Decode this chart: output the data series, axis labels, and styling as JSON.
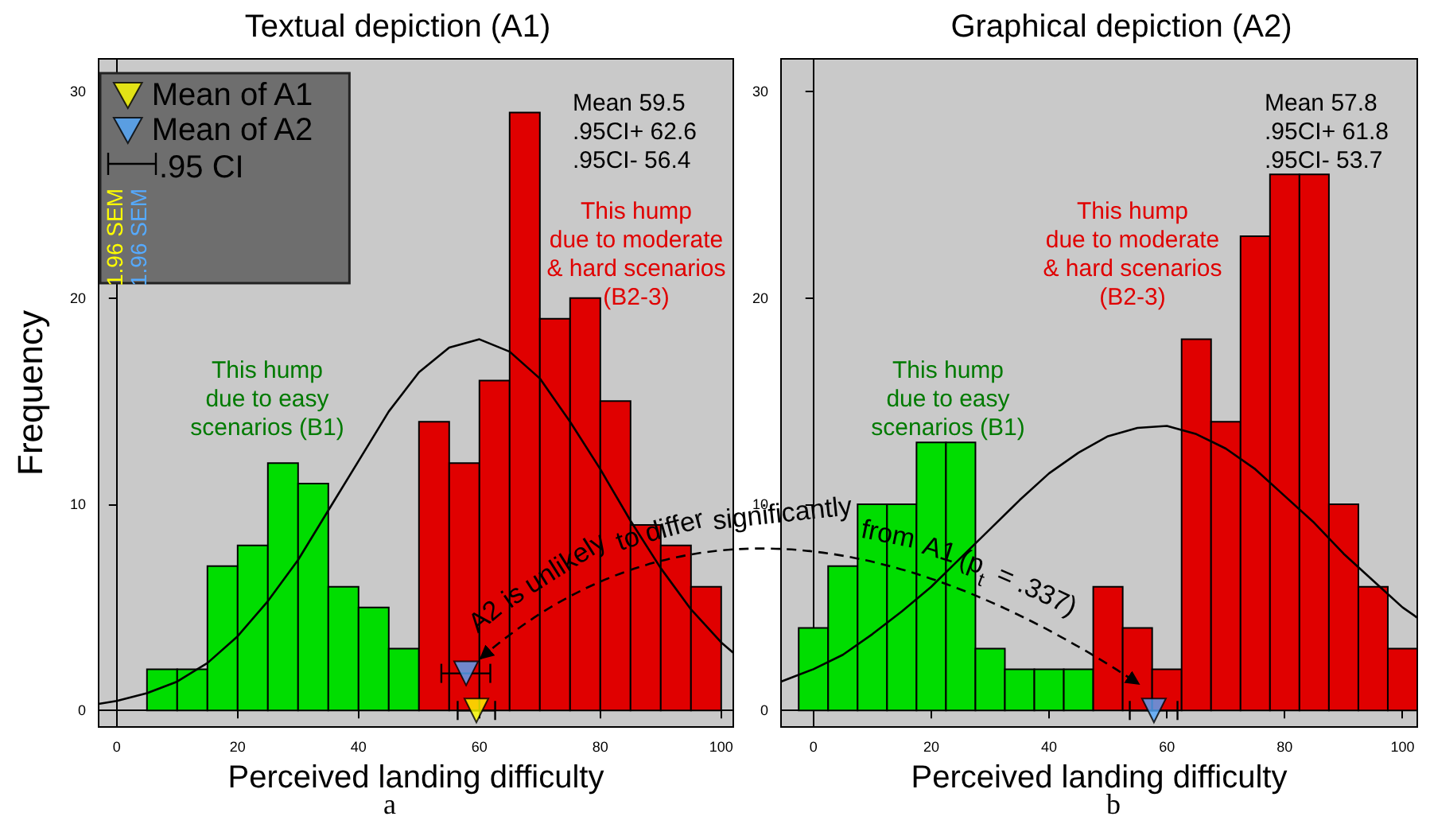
{
  "chart_data": [
    {
      "type": "histogram",
      "title": "Textual depiction (A1)",
      "xlabel": "Perceived landing difficulty",
      "ylabel": "Frequency",
      "xlim": [
        -3,
        102
      ],
      "ylim": [
        -0.8,
        31.6
      ],
      "xticks": [
        0,
        20,
        40,
        60,
        80,
        100
      ],
      "yticks": [
        0,
        10,
        20,
        30
      ],
      "legend": "top left",
      "marker": "triangle",
      "annotations": [
        "Mean 59.5\n.95CI+ 62.6\n.95CI- 56.4",
        "This hump\ndue to easy\nscenarios (B1)",
        "This hump\ndue to moderate\n& hard scenarios\n(B2-3)",
        ".95 CI",
        "1.96 SEM",
        "1.96 SEM",
        "A2 is unlikely to differ significantly from A1 (p$_{t}$ = .337)",
        "a"
      ],
      "series": [
        {
          "bins": [
            5,
            10,
            15,
            20,
            25,
            30,
            35,
            40,
            45,
            50,
            55,
            60,
            65,
            70,
            75,
            80,
            85,
            90,
            95,
            100
          ],
          "values": [
            2,
            2,
            7,
            8,
            12,
            11,
            6,
            5,
            3,
            14,
            12,
            16,
            29,
            19,
            20,
            15,
            9,
            8,
            6
          ],
          "colors": [
            "#00dd00",
            "#00dd00",
            "#00dd00",
            "#00dd00",
            "#00dd00",
            "#00dd00",
            "#00dd00",
            "#00dd00",
            "#00dd00",
            "#e00000",
            "#e00000",
            "#e00000",
            "#e00000",
            "#e00000",
            "#e00000",
            "#e00000",
            "#e00000",
            "#e00000",
            "#e00000"
          ]
        },
        {
          "type": "line",
          "color": "#000000",
          "marker": "none",
          "x": [
            -3,
            0,
            5,
            10,
            15,
            20,
            25,
            30,
            35,
            40,
            45,
            50,
            55,
            60,
            65,
            70,
            75,
            80,
            85,
            90,
            95,
            100,
            102
          ],
          "values": [
            0.32,
            0.46,
            0.84,
            1.4,
            2.3,
            3.6,
            5.3,
            7.3,
            9.7,
            12.1,
            14.5,
            16.4,
            17.6,
            18,
            17.4,
            16.1,
            14,
            11.7,
            9.2,
            6.9,
            4.9,
            3.3,
            2.8
          ]
        },
        {
          "type": "scatter",
          "name": "Mean of A1",
          "color": "#ffff00",
          "x": [
            59.5
          ],
          "values": [
            0
          ],
          "xerrors": [
            [
              56.4,
              62.6
            ]
          ]
        },
        {
          "type": "scatter",
          "name": "Mean of A2",
          "color": "#55aaff",
          "x": [
            57.8
          ],
          "values": [
            1.8
          ],
          "xerrors": [
            [
              53.7,
              61.8
            ]
          ]
        }
      ]
    },
    {
      "type": "histogram",
      "title": "Graphical depiction (A2)",
      "xlabel": "Perceived landing difficulty",
      "xlim": [
        -5.5,
        102.5
      ],
      "ylim": [
        -0.8,
        31.6
      ],
      "xticks": [
        0,
        20,
        40,
        60,
        80,
        100
      ],
      "yticks": [
        0,
        10,
        20,
        30
      ],
      "marker": "triangle",
      "annotations": [
        "Mean 57.8\n.95CI+ 61.8\n.95CI- 53.7",
        "This hump\ndue to easy\nscenarios (B1)",
        "This hump\ndue to moderate\n& hard scenarios\n(B2-3)",
        "b"
      ],
      "series": [
        {
          "bins": [
            -2.5,
            2.5,
            7.5,
            12.5,
            17.5,
            22.5,
            27.5,
            32.5,
            37.5,
            42.5,
            47.5,
            52.5,
            57.5,
            62.5,
            67.5,
            72.5,
            77.5,
            82.5,
            87.5,
            92.5,
            97.5,
            102.5
          ],
          "values": [
            4,
            7,
            10,
            10,
            13,
            13,
            3,
            2,
            2,
            2,
            6,
            4,
            2,
            18,
            14,
            23,
            26,
            26,
            10,
            6,
            3
          ],
          "colors": [
            "#00dd00",
            "#00dd00",
            "#00dd00",
            "#00dd00",
            "#00dd00",
            "#00dd00",
            "#00dd00",
            "#00dd00",
            "#00dd00",
            "#00dd00",
            "#e00000",
            "#e00000",
            "#e00000",
            "#e00000",
            "#e00000",
            "#e00000",
            "#e00000",
            "#e00000",
            "#e00000",
            "#e00000",
            "#e00000"
          ]
        },
        {
          "type": "line",
          "color": "#000000",
          "marker": "none",
          "x": [
            -5.5,
            0,
            5,
            10,
            15,
            20,
            25,
            30,
            35,
            40,
            45,
            50,
            55,
            60,
            65,
            70,
            75,
            80,
            85,
            90,
            95,
            100,
            102.5
          ],
          "values": [
            1.4,
            2.0,
            2.7,
            3.7,
            4.8,
            6.0,
            7.4,
            8.8,
            10.2,
            11.5,
            12.5,
            13.3,
            13.7,
            13.8,
            13.4,
            12.7,
            11.7,
            10.4,
            9.1,
            7.6,
            6.3,
            5.0,
            4.5
          ]
        },
        {
          "type": "scatter",
          "color": "#55aaff",
          "x": [
            57.8
          ],
          "values": [
            0
          ],
          "xerrors": [
            [
              53.7,
              61.8
            ]
          ]
        }
      ]
    }
  ]
}
